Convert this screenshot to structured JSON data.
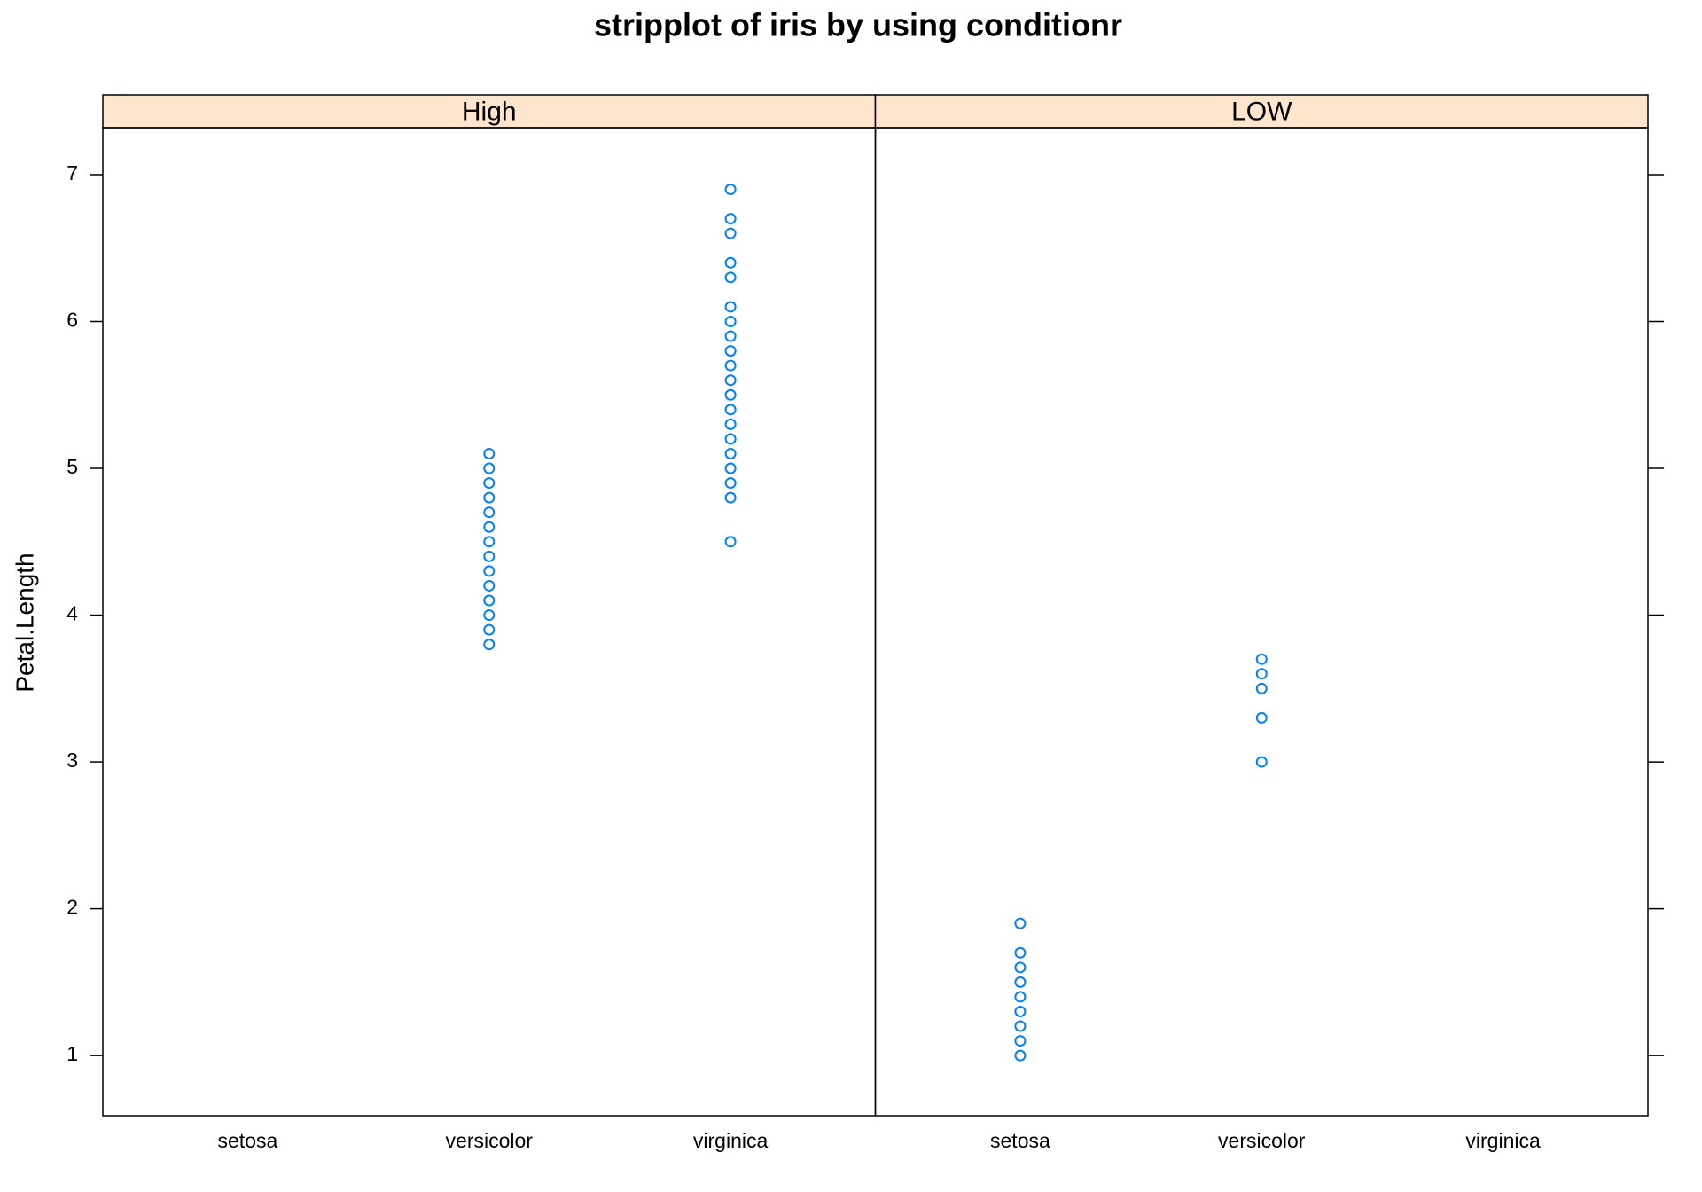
{
  "chart_data": {
    "type": "strip",
    "title": "stripplot of iris by using conditionr",
    "ylabel": "Petal.Length",
    "ylim": [
      0.59,
      7.32
    ],
    "yticks": [
      1,
      2,
      3,
      4,
      5,
      6,
      7
    ],
    "color": "#0080ff",
    "strip_color": "#ffe5cc",
    "panels": [
      {
        "strip": "High",
        "categories": [
          "setosa",
          "versicolor",
          "virginica"
        ],
        "values": [
          [],
          [
            3.8,
            3.9,
            4.0,
            4.1,
            4.2,
            4.3,
            4.4,
            4.5,
            4.6,
            4.7,
            4.8,
            4.9,
            5.0,
            5.1
          ],
          [
            4.5,
            4.8,
            4.9,
            5.0,
            5.1,
            5.2,
            5.3,
            5.4,
            5.5,
            5.6,
            5.7,
            5.8,
            5.9,
            6.0,
            6.1,
            6.3,
            6.4,
            6.6,
            6.7,
            6.9
          ]
        ]
      },
      {
        "strip": "LOW",
        "categories": [
          "setosa",
          "versicolor",
          "virginica"
        ],
        "values": [
          [
            1.0,
            1.1,
            1.2,
            1.3,
            1.4,
            1.5,
            1.6,
            1.7,
            1.9
          ],
          [
            3.0,
            3.3,
            3.5,
            3.6,
            3.7
          ],
          []
        ]
      }
    ]
  }
}
